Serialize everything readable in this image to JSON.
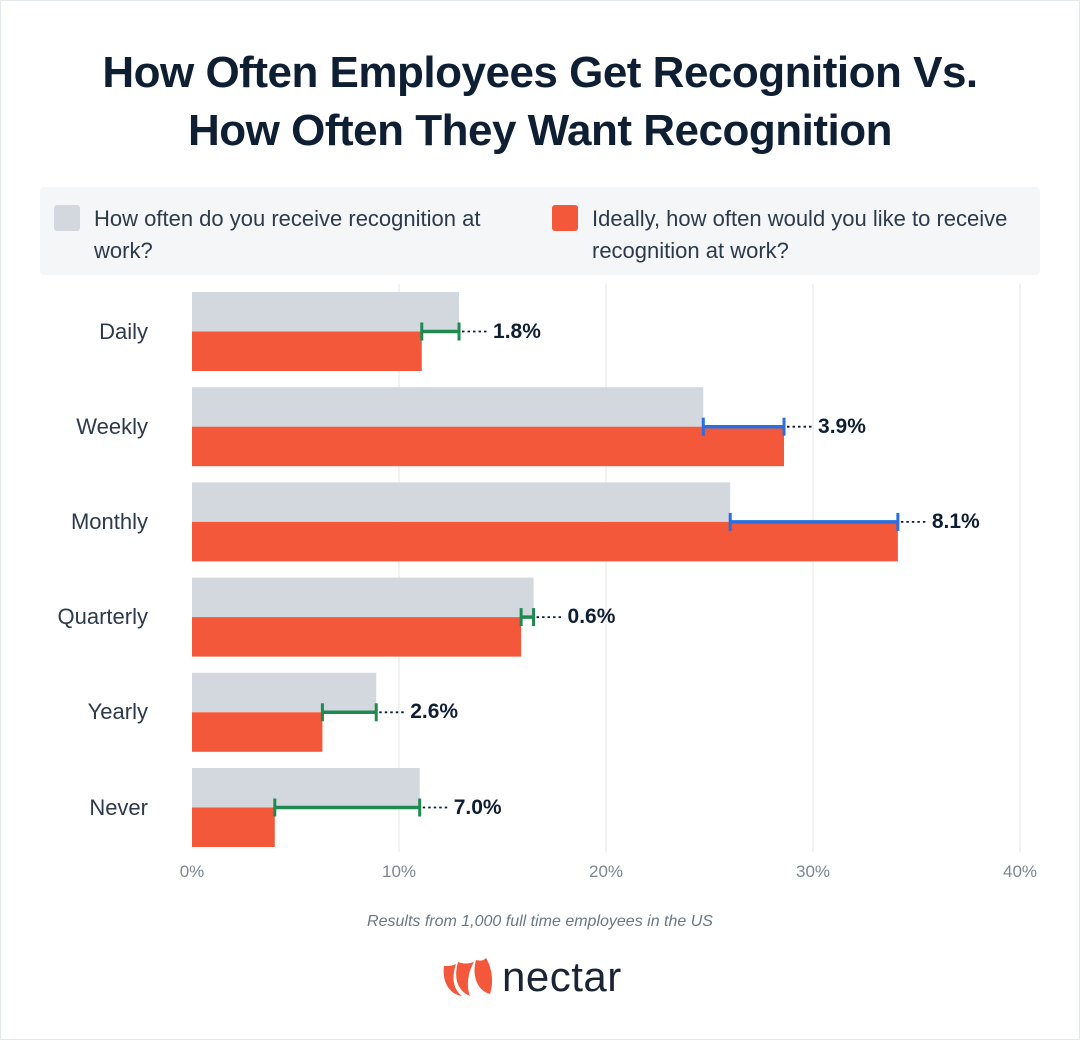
{
  "title_lines": [
    "How Often Employees Get Recognition Vs.",
    "How Often They Want Recognition"
  ],
  "legend": [
    {
      "label": "How often do you receive recognition at work?",
      "color": "#d2d8de"
    },
    {
      "label": "Ideally, how often would you like to receive recognition at work?",
      "color": "#f4583a"
    }
  ],
  "footnote": "Results from 1,000 full time employees in the US",
  "brand": {
    "name": "nectar",
    "icon": "nectar-logo-icon",
    "color": "#f4583a"
  },
  "chart_data": {
    "type": "bar",
    "orientation": "horizontal",
    "categories": [
      "Daily",
      "Weekly",
      "Monthly",
      "Quarterly",
      "Yearly",
      "Never"
    ],
    "series": [
      {
        "name": "How often do you receive recognition at work?",
        "values": [
          12.9,
          24.7,
          26.0,
          16.5,
          8.9,
          11.0
        ],
        "color": "#d2d8de"
      },
      {
        "name": "Ideally, how often would you like to receive recognition at work?",
        "values": [
          11.1,
          28.6,
          34.1,
          15.9,
          6.3,
          4.0
        ],
        "color": "#f4583a"
      }
    ],
    "differences": [
      {
        "label": "1.8%",
        "color": "#1f8a50"
      },
      {
        "label": "3.9%",
        "color": "#2a6ee0"
      },
      {
        "label": "8.1%",
        "color": "#2a6ee0"
      },
      {
        "label": "0.6%",
        "color": "#1f8a50"
      },
      {
        "label": "2.6%",
        "color": "#1f8a50"
      },
      {
        "label": "7.0%",
        "color": "#1f8a50"
      }
    ],
    "xlim": [
      0,
      40
    ],
    "xticks": [
      "0%",
      "10%",
      "20%",
      "30%",
      "40%"
    ],
    "grid": true,
    "legend_position": "top"
  }
}
